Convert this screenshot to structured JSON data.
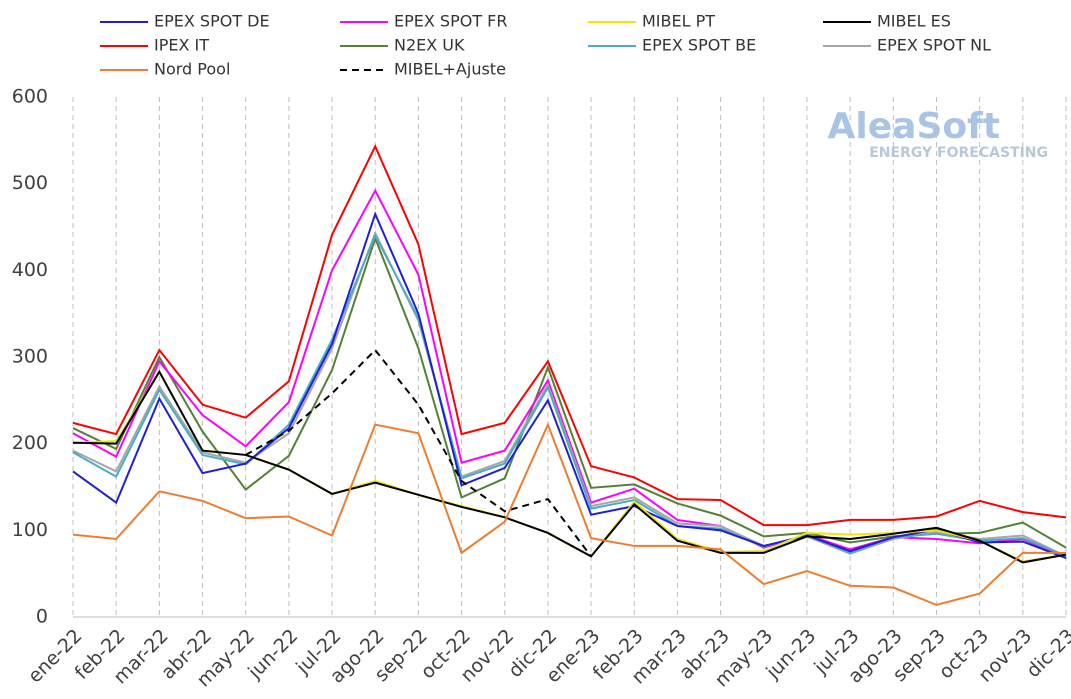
{
  "chart_data": {
    "type": "line",
    "annotations": [
      "AleaSoft",
      "ENERGY FORECASTING"
    ],
    "categories": [
      "ene-22",
      "feb-22",
      "mar-22",
      "abr-22",
      "may-22",
      "jun-22",
      "jul-22",
      "ago-22",
      "sep-22",
      "oct-22",
      "nov-22",
      "dic-22",
      "ene-23",
      "feb-23",
      "mar-23",
      "abr-23",
      "may-23",
      "jun-23",
      "jul-23",
      "ago-23",
      "sep-23",
      "oct-23",
      "nov-23",
      "dic-23"
    ],
    "series": [
      {
        "name": "EPEX SPOT DE",
        "color": "#1f1fd6",
        "values": [
          168,
          132,
          252,
          166,
          177,
          218,
          315,
          465,
          350,
          152,
          172,
          250,
          118,
          128,
          105,
          100,
          82,
          94,
          76,
          92,
          101,
          86,
          87,
          68
        ]
      },
      {
        "name": "EPEX SPOT FR",
        "color": "#ff00ff",
        "values": [
          212,
          185,
          295,
          233,
          197,
          248,
          400,
          492,
          395,
          178,
          192,
          273,
          132,
          148,
          112,
          105,
          80,
          95,
          78,
          92,
          90,
          85,
          90,
          68
        ]
      },
      {
        "name": "MIBEL PT",
        "color": "#f2e600",
        "values": [
          201,
          203,
          283,
          192,
          187,
          170,
          142,
          157,
          141,
          128,
          115,
          97,
          70,
          133,
          90,
          75,
          76,
          97,
          95,
          97,
          100,
          88,
          64,
          72
        ]
      },
      {
        "name": "MIBEL ES",
        "color": "#000000",
        "values": [
          201,
          200,
          283,
          192,
          187,
          170,
          142,
          155,
          141,
          127,
          115,
          97,
          70,
          130,
          88,
          74,
          74,
          93,
          90,
          96,
          103,
          88,
          63,
          72
        ]
      },
      {
        "name": "IPEX IT",
        "color": "#ff0000",
        "values": [
          224,
          211,
          308,
          245,
          230,
          272,
          441,
          543,
          430,
          211,
          224,
          295,
          174,
          161,
          136,
          135,
          106,
          106,
          112,
          112,
          116,
          134,
          121,
          115
        ]
      },
      {
        "name": "N2EX UK",
        "color": "#548235",
        "values": [
          218,
          194,
          300,
          214,
          147,
          186,
          285,
          437,
          310,
          138,
          160,
          288,
          149,
          153,
          131,
          117,
          93,
          97,
          86,
          93,
          96,
          97,
          109,
          80
        ]
      },
      {
        "name": "EPEX SPOT BE",
        "color": "#4bacc6",
        "values": [
          190,
          162,
          262,
          187,
          176,
          222,
          320,
          440,
          345,
          160,
          177,
          265,
          125,
          135,
          105,
          102,
          81,
          95,
          74,
          92,
          96,
          88,
          91,
          70
        ]
      },
      {
        "name": "EPEX SPOT NL",
        "color": "#a6a6a6",
        "values": [
          192,
          168,
          266,
          190,
          178,
          212,
          310,
          443,
          342,
          162,
          180,
          268,
          128,
          138,
          108,
          105,
          82,
          93,
          73,
          90,
          98,
          90,
          94,
          70
        ]
      },
      {
        "name": "Nord Pool",
        "color": "#ed7d31",
        "values": [
          95,
          90,
          145,
          134,
          114,
          116,
          94,
          222,
          212,
          74,
          110,
          222,
          91,
          82,
          82,
          78,
          38,
          53,
          36,
          34,
          14,
          27,
          74,
          74
        ]
      },
      {
        "name": "MIBEL+Ajuste",
        "color": "#000000",
        "dashed": true,
        "values": [
          null,
          null,
          null,
          null,
          187,
          215,
          258,
          308,
          245,
          157,
          122,
          136,
          70,
          null,
          null,
          null,
          null,
          null,
          null,
          null,
          null,
          null,
          null,
          null
        ]
      }
    ],
    "ylim": [
      0,
      600
    ],
    "yticks": [
      0,
      100,
      200,
      300,
      400,
      500,
      600
    ],
    "grid": "vertical"
  }
}
